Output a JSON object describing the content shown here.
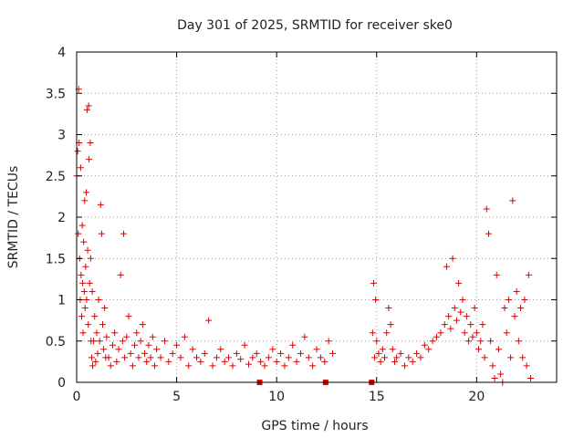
{
  "chart_data": {
    "type": "scatter",
    "title": "Day 301 of 2025, SRMTID for receiver ske0",
    "xlabel": "GPS time / hours",
    "ylabel": "SRMTID / TECUs",
    "xlim": [
      0,
      24
    ],
    "ylim": [
      0,
      4
    ],
    "xticks": [
      0,
      5,
      10,
      15,
      20
    ],
    "xtick_labels": [
      "0",
      "5",
      "10",
      "15",
      "20"
    ],
    "yticks": [
      0,
      0.5,
      1,
      1.5,
      2,
      2.5,
      3,
      3.5,
      4
    ],
    "ytick_labels": [
      "0",
      "0.5",
      "1",
      "1.5",
      "2",
      "2.5",
      "3",
      "3.5",
      "4"
    ],
    "grid": true,
    "marker": "+",
    "color": "#dd0000",
    "gap_markers": {
      "marker": "square",
      "x": [
        9.15,
        12.45,
        14.75
      ],
      "y": [
        0,
        0,
        0
      ]
    },
    "series": [
      {
        "name": "SRMTID",
        "x": [
          0.0,
          0.05,
          0.08,
          0.1,
          0.12,
          0.15,
          0.18,
          0.2,
          0.22,
          0.25,
          0.28,
          0.3,
          0.32,
          0.35,
          0.38,
          0.4,
          0.42,
          0.45,
          0.48,
          0.5,
          0.52,
          0.55,
          0.58,
          0.6,
          0.62,
          0.65,
          0.68,
          0.7,
          0.72,
          0.75,
          0.78,
          0.8,
          0.85,
          0.9,
          0.95,
          1.0,
          1.05,
          1.1,
          1.15,
          1.2,
          1.25,
          1.3,
          1.35,
          1.4,
          1.45,
          1.5,
          1.6,
          1.7,
          1.8,
          1.9,
          2.0,
          2.1,
          2.2,
          2.3,
          2.35,
          2.4,
          2.5,
          2.6,
          2.7,
          2.8,
          2.9,
          3.0,
          3.1,
          3.2,
          3.3,
          3.4,
          3.5,
          3.6,
          3.7,
          3.8,
          3.9,
          4.0,
          4.2,
          4.4,
          4.6,
          4.8,
          5.0,
          5.2,
          5.4,
          5.6,
          5.8,
          6.0,
          6.2,
          6.4,
          6.6,
          6.8,
          7.0,
          7.2,
          7.4,
          7.6,
          7.8,
          8.0,
          8.2,
          8.4,
          8.6,
          8.8,
          9.0,
          9.2,
          9.4,
          9.6,
          9.8,
          10.0,
          10.2,
          10.4,
          10.6,
          10.8,
          11.0,
          11.2,
          11.4,
          11.6,
          11.8,
          12.0,
          12.2,
          12.4,
          12.6,
          12.8,
          14.8,
          14.85,
          14.9,
          14.95,
          15.0,
          15.1,
          15.2,
          15.3,
          15.4,
          15.5,
          15.6,
          15.7,
          15.8,
          15.9,
          16.0,
          16.2,
          16.4,
          16.6,
          16.8,
          17.0,
          17.2,
          17.4,
          17.6,
          17.8,
          18.0,
          18.2,
          18.4,
          18.5,
          18.6,
          18.7,
          18.8,
          18.9,
          19.0,
          19.1,
          19.2,
          19.3,
          19.4,
          19.5,
          19.6,
          19.7,
          19.8,
          19.9,
          20.0,
          20.1,
          20.2,
          20.3,
          20.4,
          20.5,
          20.6,
          20.7,
          20.8,
          20.9,
          21.0,
          21.1,
          21.2,
          21.3,
          21.4,
          21.5,
          21.6,
          21.7,
          21.8,
          21.9,
          22.0,
          22.1,
          22.2,
          22.3,
          22.4,
          22.5,
          22.6,
          22.7
        ],
        "y": [
          2.5,
          2.8,
          1.8,
          3.55,
          2.9,
          1.5,
          1.0,
          2.6,
          1.3,
          0.8,
          1.9,
          1.2,
          0.6,
          1.7,
          1.1,
          2.2,
          0.9,
          1.4,
          2.3,
          1.0,
          3.3,
          1.6,
          0.7,
          3.35,
          2.7,
          1.2,
          2.9,
          1.5,
          0.5,
          0.3,
          1.1,
          0.2,
          0.5,
          0.8,
          0.25,
          0.6,
          0.35,
          1.0,
          0.5,
          2.15,
          1.8,
          0.7,
          0.4,
          0.9,
          0.3,
          0.55,
          0.3,
          0.2,
          0.45,
          0.6,
          0.25,
          0.4,
          1.3,
          0.5,
          1.8,
          0.3,
          0.55,
          0.8,
          0.35,
          0.2,
          0.45,
          0.6,
          0.3,
          0.5,
          0.7,
          0.35,
          0.25,
          0.45,
          0.3,
          0.55,
          0.2,
          0.4,
          0.3,
          0.5,
          0.25,
          0.35,
          0.45,
          0.3,
          0.55,
          0.2,
          0.4,
          0.3,
          0.25,
          0.35,
          0.75,
          0.2,
          0.3,
          0.4,
          0.25,
          0.3,
          0.2,
          0.35,
          0.28,
          0.45,
          0.22,
          0.3,
          0.35,
          0.25,
          0.2,
          0.3,
          0.4,
          0.25,
          0.35,
          0.2,
          0.3,
          0.45,
          0.25,
          0.35,
          0.55,
          0.3,
          0.2,
          0.4,
          0.3,
          0.25,
          0.5,
          0.35,
          0.6,
          1.2,
          0.3,
          1.0,
          0.5,
          0.35,
          0.25,
          0.4,
          0.3,
          0.6,
          0.9,
          0.7,
          0.4,
          0.25,
          0.3,
          0.35,
          0.2,
          0.3,
          0.25,
          0.35,
          0.3,
          0.45,
          0.4,
          0.5,
          0.55,
          0.6,
          0.7,
          1.4,
          0.8,
          0.65,
          1.5,
          0.9,
          0.75,
          1.2,
          0.85,
          1.0,
          0.6,
          0.8,
          0.5,
          0.7,
          0.55,
          0.9,
          0.6,
          0.4,
          0.5,
          0.7,
          0.3,
          2.1,
          1.8,
          0.5,
          0.2,
          0.05,
          1.3,
          0.4,
          0.1,
          0.0,
          0.9,
          0.6,
          1.0,
          0.3,
          2.2,
          0.8,
          1.1,
          0.5,
          0.9,
          0.3,
          1.0,
          0.2,
          1.3,
          0.05
        ]
      }
    ]
  }
}
